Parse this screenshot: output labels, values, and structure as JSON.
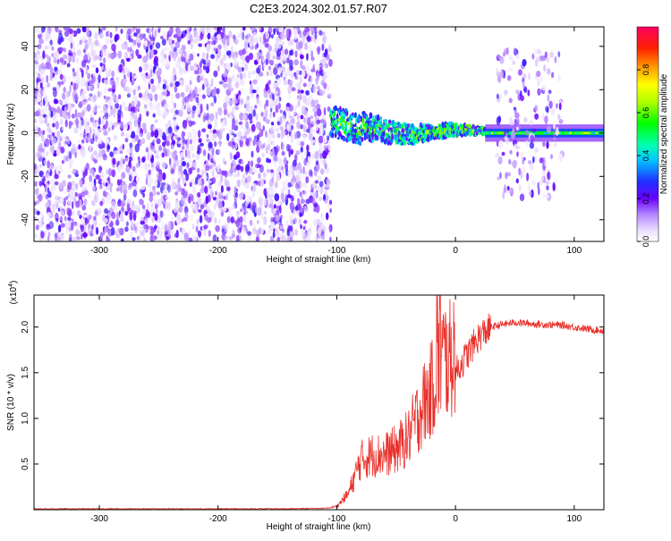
{
  "title": "C2E3.2024.302.01.57.R07",
  "colors": {
    "snr_line": "#e8302a",
    "frame": "#000000"
  },
  "chart_data": [
    {
      "type": "heatmap",
      "title": "C2E3.2024.302.01.57.R07",
      "xlabel": "Height of straight line (km)",
      "ylabel": "Frequency (Hz)",
      "xlim": [
        -355,
        125
      ],
      "ylim": [
        -50,
        49
      ],
      "xticks": [
        -300,
        -200,
        -100,
        0,
        100
      ],
      "yticks": [
        -40,
        -20,
        0,
        20,
        40
      ],
      "colorbar": {
        "label": "Normalized spectral amplitude",
        "range": [
          0,
          1
        ],
        "ticks": [
          "0.0",
          "0.2",
          "0.4",
          "0.6",
          "0.8"
        ],
        "tick_values": [
          0.0,
          0.2,
          0.4,
          0.6,
          0.8
        ]
      },
      "regions": [
        {
          "x_range": [
            -355,
            -105
          ],
          "description": "broadband noise",
          "freq_range": [
            -50,
            49
          ],
          "amplitude": 0.15
        },
        {
          "x_range": [
            -105,
            25
          ],
          "description": "signal track",
          "freq_range": [
            -5,
            10
          ],
          "amplitude": 0.45
        },
        {
          "x_range": [
            25,
            125
          ],
          "description": "narrowband carrier",
          "freq_range": [
            -2,
            2
          ],
          "amplitude": 0.5
        },
        {
          "x_range": [
            35,
            90
          ],
          "description": "scattered noise",
          "freq_range": [
            -30,
            38
          ],
          "amplitude": 0.15
        }
      ]
    },
    {
      "type": "line",
      "xlabel": "Height of straight line (km)",
      "ylabel": "SNR (10 * v/v)",
      "yscale_label": "(x10",
      "yscale_exp": "4",
      "xlim": [
        -355,
        125
      ],
      "ylim": [
        0,
        2.35
      ],
      "xticks": [
        -300,
        -200,
        -100,
        0,
        100
      ],
      "yticks": [
        "0.5",
        "1.0",
        "1.5",
        "2.0"
      ],
      "ytick_values": [
        0.5,
        1.0,
        1.5,
        2.0
      ],
      "series": [
        {
          "x": [
            -355,
            -300,
            -250,
            -200,
            -150,
            -110,
            -100,
            -90,
            -80,
            -70,
            -60,
            -50,
            -40,
            -30,
            -20,
            -15,
            -10,
            -5,
            0,
            10,
            20,
            30,
            40,
            50,
            70,
            90,
            110,
            125
          ],
          "y": [
            0.01,
            0.01,
            0.01,
            0.01,
            0.01,
            0.015,
            0.03,
            0.15,
            0.45,
            0.5,
            0.5,
            0.55,
            0.65,
            0.9,
            1.1,
            1.3,
            1.4,
            1.35,
            1.5,
            1.7,
            1.9,
            2.0,
            2.03,
            2.05,
            2.03,
            2.02,
            1.98,
            1.96
          ]
        }
      ]
    }
  ]
}
